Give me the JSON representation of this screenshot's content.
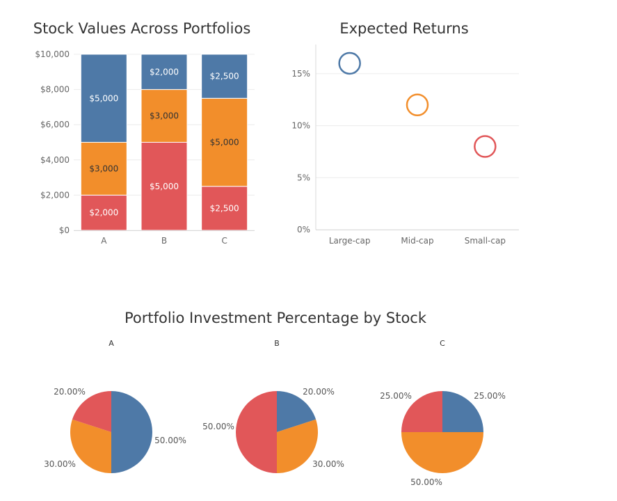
{
  "colors": {
    "Large-cap": "#4e79a7",
    "Mid-cap": "#f28e2b",
    "Small-cap": "#e15759"
  },
  "chart_data": [
    {
      "type": "bar",
      "stacked": true,
      "title": "Stock Values Across Portfolios",
      "categories": [
        "A",
        "B",
        "C"
      ],
      "y_ticks": [
        "$0",
        "$2,000",
        "$4,000",
        "$6,000",
        "$8,000",
        "$10,000"
      ],
      "ylim": [
        0,
        10000
      ],
      "series": [
        {
          "key": "Small-cap",
          "values": [
            2000,
            5000,
            2500
          ],
          "labels": [
            "$2,000",
            "$5,000",
            "$2,500"
          ]
        },
        {
          "key": "Mid-cap",
          "values": [
            3000,
            3000,
            5000
          ],
          "labels": [
            "$3,000",
            "$3,000",
            "$5,000"
          ]
        },
        {
          "key": "Large-cap",
          "values": [
            5000,
            2000,
            2500
          ],
          "labels": [
            "$5,000",
            "$2,000",
            "$2,500"
          ]
        }
      ]
    },
    {
      "type": "scatter",
      "title": "Expected Returns",
      "categories": [
        "Large-cap",
        "Mid-cap",
        "Small-cap"
      ],
      "values": [
        16,
        12,
        8
      ],
      "y_ticks": [
        "0%",
        "5%",
        "10%",
        "15%"
      ],
      "ylim": [
        0,
        17
      ]
    },
    {
      "type": "pie",
      "title": "Portfolio Investment Percentage by Stock",
      "pies": [
        {
          "name": "A",
          "slices": [
            {
              "key": "Large-cap",
              "value": 50,
              "label": "50.00%"
            },
            {
              "key": "Mid-cap",
              "value": 30,
              "label": "30.00%"
            },
            {
              "key": "Small-cap",
              "value": 20,
              "label": "20.00%"
            }
          ]
        },
        {
          "name": "B",
          "slices": [
            {
              "key": "Large-cap",
              "value": 20,
              "label": "20.00%"
            },
            {
              "key": "Mid-cap",
              "value": 30,
              "label": "30.00%"
            },
            {
              "key": "Small-cap",
              "value": 50,
              "label": "50.00%"
            }
          ]
        },
        {
          "name": "C",
          "slices": [
            {
              "key": "Large-cap",
              "value": 25,
              "label": "25.00%"
            },
            {
              "key": "Mid-cap",
              "value": 50,
              "label": "50.00%"
            },
            {
              "key": "Small-cap",
              "value": 25,
              "label": "25.00%"
            }
          ]
        }
      ]
    }
  ]
}
